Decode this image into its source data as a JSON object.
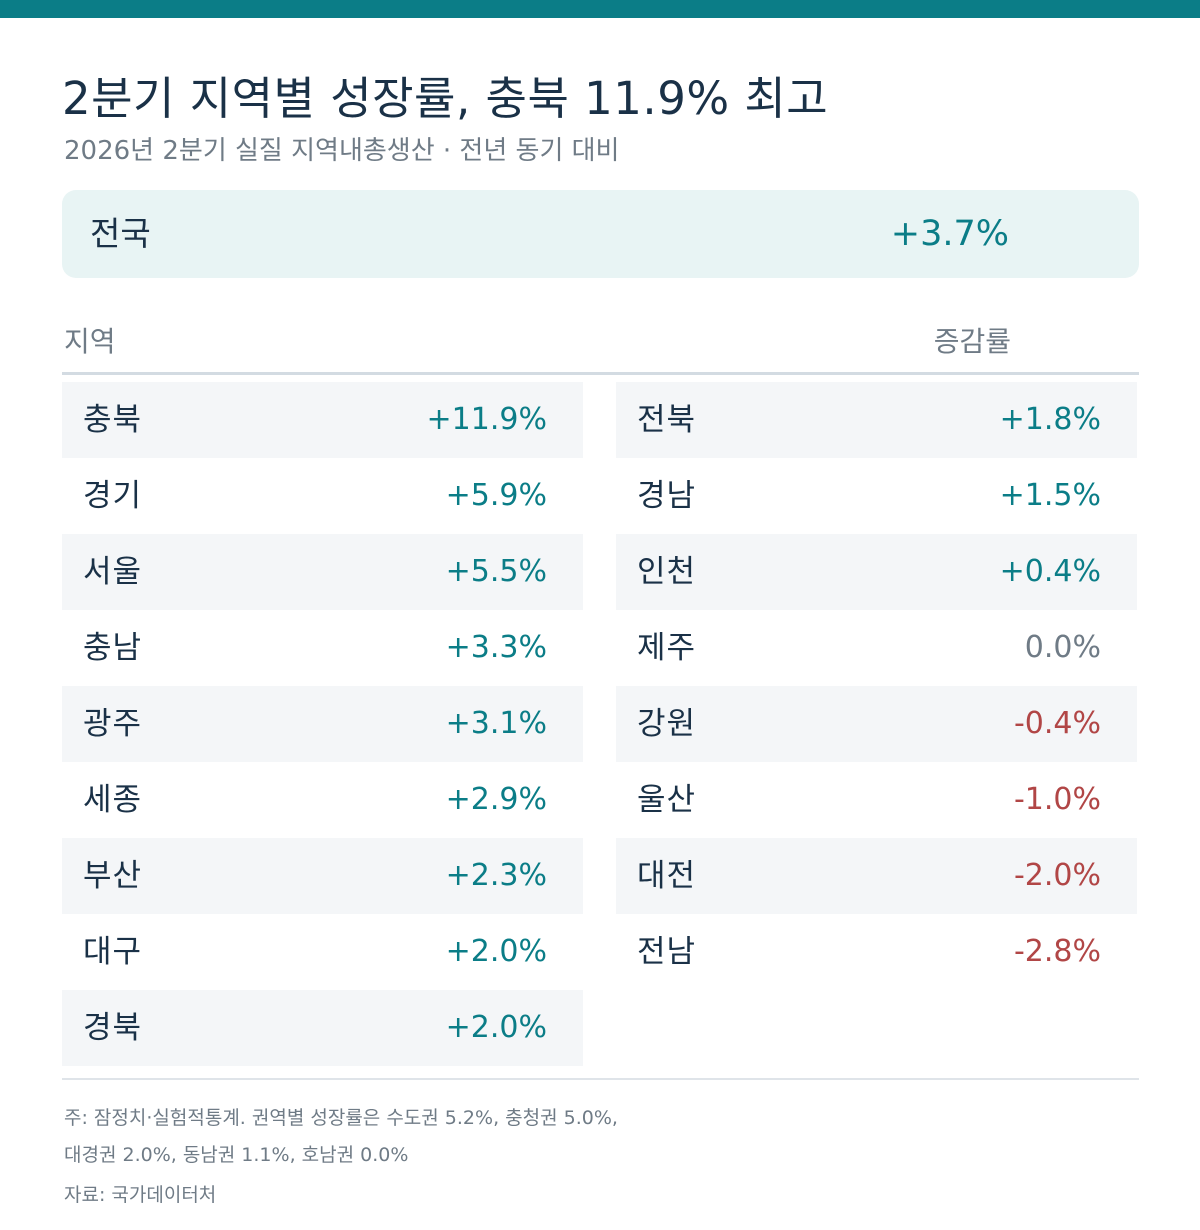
{
  "header": {
    "title": "2분기 지역별 성장률, 충북 11.9% 최고",
    "subtitle": "2026년 2분기 실질 지역내총생산 · 전년 동기 대비"
  },
  "national": {
    "label": "전국",
    "value": "+3.7%"
  },
  "table": {
    "col_region": "지역",
    "col_rate": "증감률",
    "left": [
      {
        "name": "충북",
        "value": "+11.9%",
        "sign": "pos"
      },
      {
        "name": "경기",
        "value": "+5.9%",
        "sign": "pos"
      },
      {
        "name": "서울",
        "value": "+5.5%",
        "sign": "pos"
      },
      {
        "name": "충남",
        "value": "+3.3%",
        "sign": "pos"
      },
      {
        "name": "광주",
        "value": "+3.1%",
        "sign": "pos"
      },
      {
        "name": "세종",
        "value": "+2.9%",
        "sign": "pos"
      },
      {
        "name": "부산",
        "value": "+2.3%",
        "sign": "pos"
      },
      {
        "name": "대구",
        "value": "+2.0%",
        "sign": "pos"
      },
      {
        "name": "경북",
        "value": "+2.0%",
        "sign": "pos"
      }
    ],
    "right": [
      {
        "name": "전북",
        "value": "+1.8%",
        "sign": "pos"
      },
      {
        "name": "경남",
        "value": "+1.5%",
        "sign": "pos"
      },
      {
        "name": "인천",
        "value": "+0.4%",
        "sign": "pos"
      },
      {
        "name": "제주",
        "value": "0.0%",
        "sign": "zero"
      },
      {
        "name": "강원",
        "value": "-0.4%",
        "sign": "neg"
      },
      {
        "name": "울산",
        "value": "-1.0%",
        "sign": "neg"
      },
      {
        "name": "대전",
        "value": "-2.0%",
        "sign": "neg"
      },
      {
        "name": "전남",
        "value": "-2.8%",
        "sign": "neg"
      }
    ]
  },
  "footer": {
    "note_line1": "주: 잠정치·실험적통계. 권역별 성장률은 수도권 5.2%, 충청권 5.0%,",
    "note_line2": "대경권 2.0%, 동남권 1.1%, 호남권 0.0%",
    "source": "자료: 국가데이터처"
  },
  "colors": {
    "accent": "#0b7d87",
    "negative": "#b14646",
    "neutral": "#6f7b86"
  }
}
